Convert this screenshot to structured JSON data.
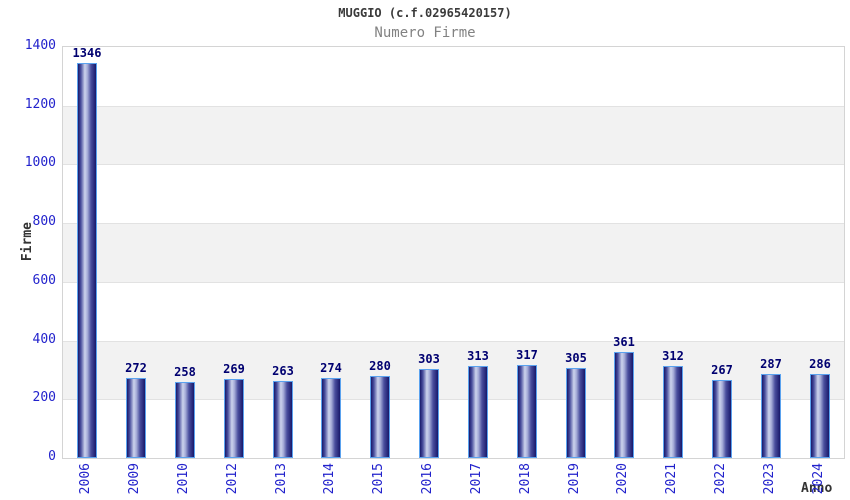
{
  "header": {
    "title": "MUGGIO (c.f.02965420157)",
    "subtitle": "Numero Firme"
  },
  "chart_data": {
    "type": "bar",
    "title": "MUGGIO (c.f.02965420157)",
    "subtitle": "Numero Firme",
    "xlabel": "Anno",
    "ylabel": "Firme",
    "categories": [
      "2006",
      "2009",
      "2010",
      "2012",
      "2013",
      "2014",
      "2015",
      "2016",
      "2017",
      "2018",
      "2019",
      "2020",
      "2021",
      "2022",
      "2023",
      "2024"
    ],
    "values": [
      1346,
      272,
      258,
      269,
      263,
      274,
      280,
      303,
      313,
      317,
      305,
      361,
      312,
      267,
      287,
      286
    ],
    "ylim": [
      0,
      1400
    ],
    "ytick_step": 200,
    "yticks": [
      0,
      200,
      400,
      600,
      800,
      1000,
      1200,
      1400
    ],
    "grid": true,
    "legend": false,
    "bar_labels_shown": true,
    "colors": {
      "bar_border": "#5aa2ef",
      "bar_dark": "#18186a",
      "bar_mid": "#4a4f9e",
      "bar_highlight": "#ccd3ec",
      "tick_label": "#2222cc",
      "value_label": "#000070",
      "band_gray": "#f2f2f2",
      "band_white": "#ffffff",
      "grid_line": "#e2e2e2",
      "plot_border": "#d4d4d4",
      "title": "#3a3a3a",
      "subtitle": "#828282",
      "axis_title": "#333333"
    }
  }
}
